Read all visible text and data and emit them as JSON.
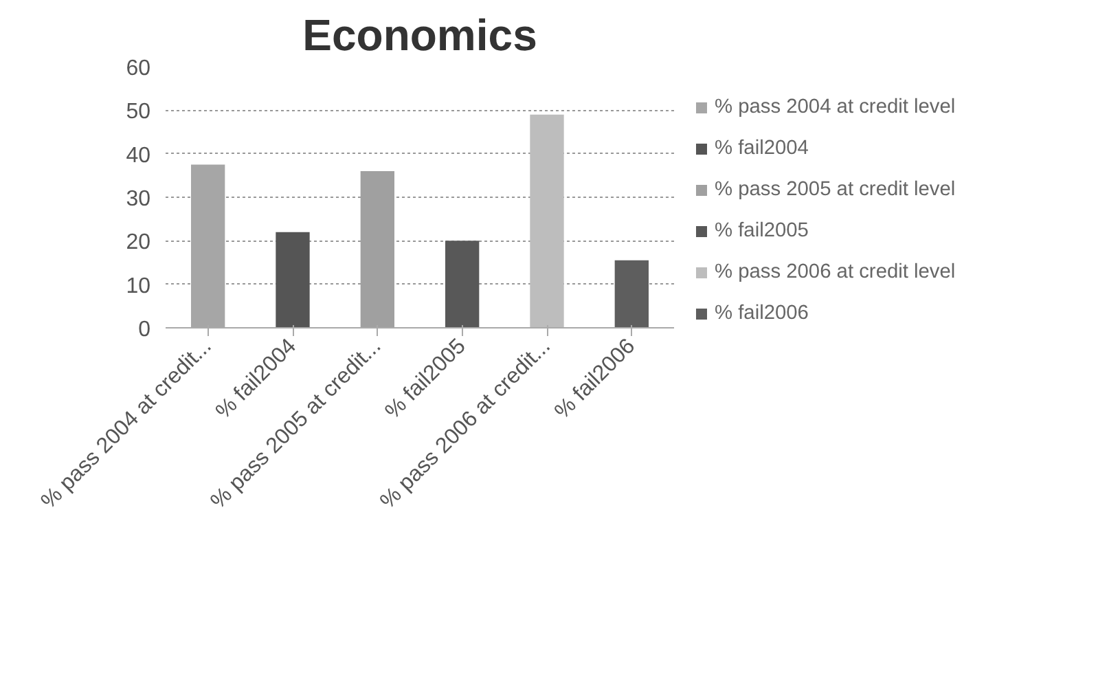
{
  "chart_data": {
    "type": "bar",
    "title": "Economics",
    "categories": [
      "% pass 2004 at credit...",
      "% fail2004",
      "% pass 2005 at credit...",
      "% fail2005",
      "% pass 2006 at credit...",
      "% fail2006"
    ],
    "series": [
      {
        "name": "% pass 2004 at credit level",
        "color": "#a6a6a6",
        "values": [
          37.5,
          null,
          null,
          null,
          null,
          null
        ]
      },
      {
        "name": "% fail2004",
        "color": "#555555",
        "values": [
          null,
          22,
          null,
          null,
          null,
          null
        ]
      },
      {
        "name": "% pass 2005 at credit level",
        "color": "#a0a0a0",
        "values": [
          null,
          null,
          36,
          null,
          null,
          null
        ]
      },
      {
        "name": "% fail2005",
        "color": "#585858",
        "values": [
          null,
          null,
          null,
          20,
          null,
          null
        ]
      },
      {
        "name": "% pass 2006 at credit level",
        "color": "#bdbdbd",
        "values": [
          null,
          null,
          null,
          null,
          49,
          null
        ]
      },
      {
        "name": "% fail2006",
        "color": "#5e5e5e",
        "values": [
          null,
          null,
          null,
          null,
          null,
          15.5
        ]
      }
    ],
    "ylim": [
      0,
      60
    ],
    "yticks": [
      0,
      10,
      20,
      30,
      40,
      50,
      60
    ],
    "grid": "y",
    "legend": "right"
  }
}
